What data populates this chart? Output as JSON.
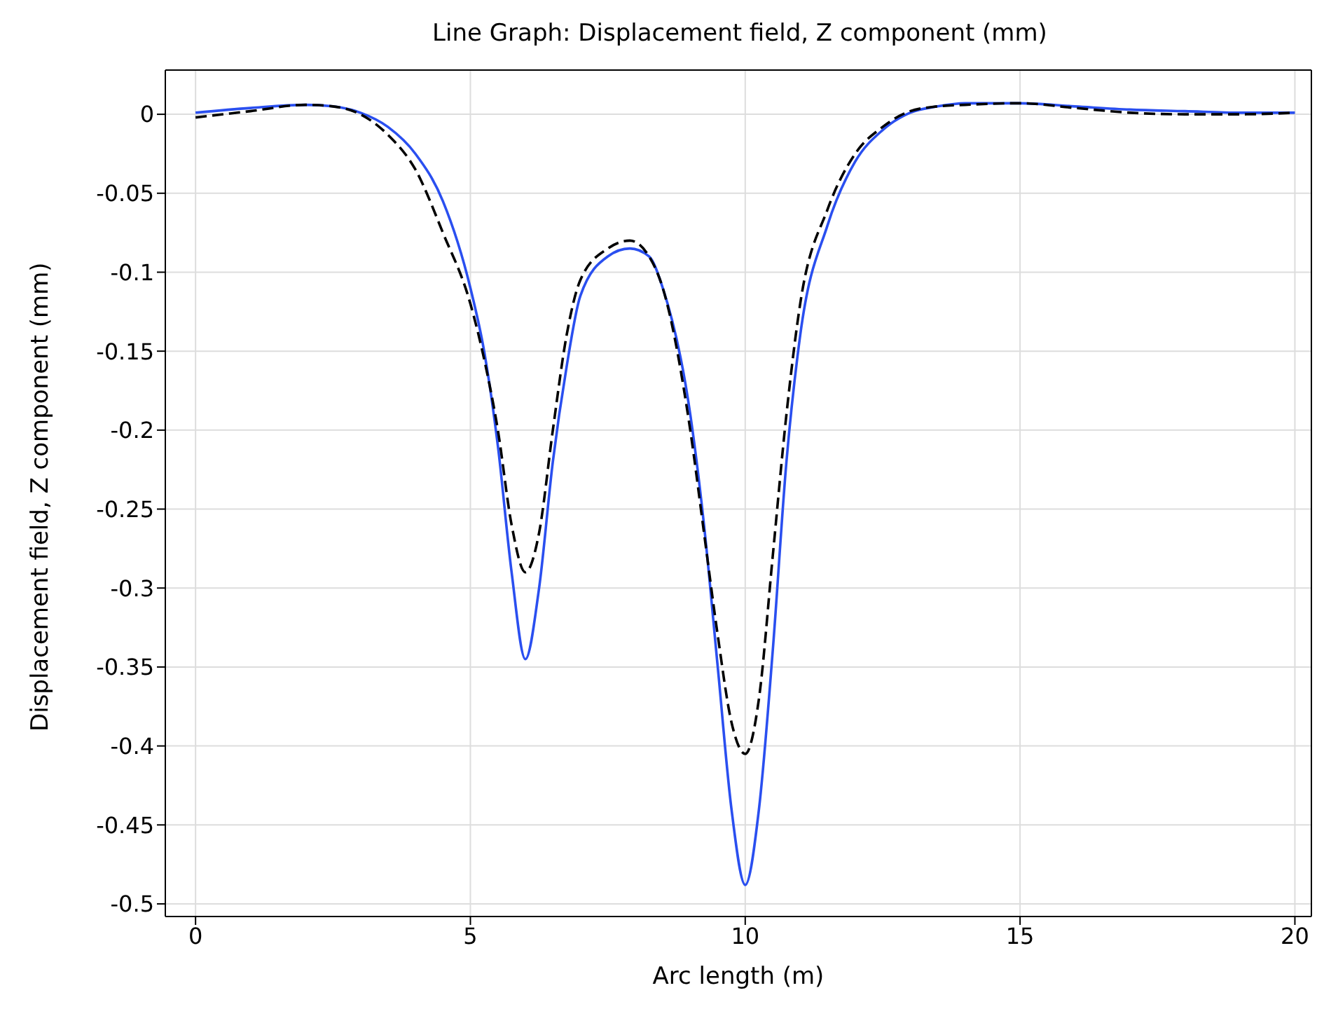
{
  "chart_data": {
    "type": "line",
    "title": "Line Graph: Displacement field, Z component (mm)",
    "xlabel": "Arc length (m)",
    "ylabel": "Displacement field, Z component (mm)",
    "x": [
      0,
      1,
      2,
      2.5,
      3,
      3.5,
      4,
      4.5,
      5,
      5.25,
      5.5,
      5.75,
      6,
      6.25,
      6.5,
      6.75,
      7,
      7.5,
      7.9,
      8.25,
      8.5,
      9,
      9.25,
      9.5,
      9.75,
      10,
      10.25,
      10.5,
      10.75,
      11,
      11.5,
      12,
      12.5,
      13,
      13.5,
      14,
      15,
      16,
      17,
      18,
      19,
      20
    ],
    "series": [
      {
        "color": "#2a4ff0",
        "line_style": "solid",
        "values": [
          0.001,
          0.004,
          0.006,
          0.005,
          0.001,
          -0.008,
          -0.025,
          -0.055,
          -0.11,
          -0.15,
          -0.21,
          -0.29,
          -0.345,
          -0.3,
          -0.22,
          -0.16,
          -0.115,
          -0.09,
          -0.085,
          -0.09,
          -0.11,
          -0.19,
          -0.26,
          -0.35,
          -0.44,
          -0.488,
          -0.44,
          -0.34,
          -0.22,
          -0.14,
          -0.07,
          -0.03,
          -0.01,
          0.001,
          0.005,
          0.007,
          0.007,
          0.005,
          0.003,
          0.002,
          0.001,
          0.001
        ]
      },
      {
        "color": "#000000",
        "line_style": "dashed",
        "values": [
          -0.002,
          0.002,
          0.006,
          0.005,
          0,
          -0.013,
          -0.035,
          -0.075,
          -0.12,
          -0.155,
          -0.2,
          -0.26,
          -0.29,
          -0.265,
          -0.2,
          -0.14,
          -0.105,
          -0.085,
          -0.08,
          -0.09,
          -0.11,
          -0.2,
          -0.265,
          -0.33,
          -0.385,
          -0.405,
          -0.37,
          -0.28,
          -0.19,
          -0.12,
          -0.06,
          -0.025,
          -0.008,
          0.002,
          0.005,
          0.006,
          0.007,
          0.004,
          0.001,
          0,
          0,
          0.001
        ]
      }
    ],
    "xlim": [
      -0.55,
      20.3
    ],
    "xticks": [
      0,
      5,
      10,
      15,
      20
    ],
    "ylim": [
      -0.508,
      0.028
    ],
    "yticks": [
      0,
      -0.05,
      -0.1,
      -0.15,
      -0.2,
      -0.25,
      -0.3,
      -0.35,
      -0.4,
      -0.45,
      -0.5
    ],
    "grid": true,
    "marker": "none"
  }
}
